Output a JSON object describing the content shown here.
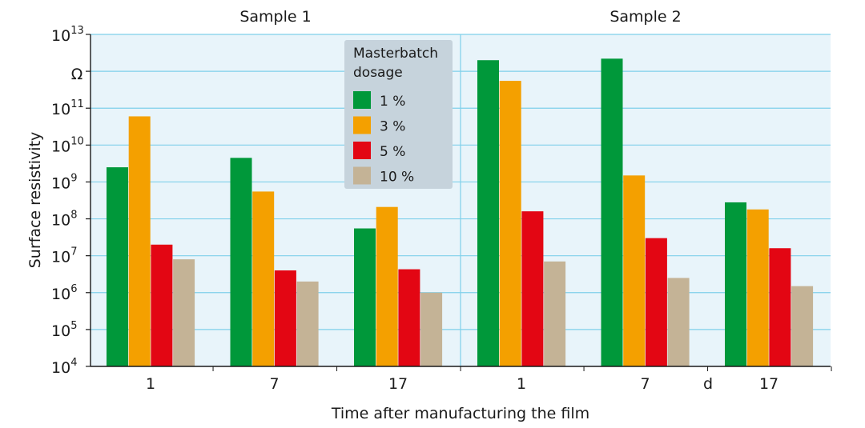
{
  "chart_data": {
    "type": "bar",
    "y_axis": {
      "label": "Surface resistivity",
      "unit_label": "Ω",
      "scale": "log",
      "range": [
        10000,
        10000000000000
      ],
      "tick_base": "10",
      "tick_exponents": [
        "4",
        "5",
        "6",
        "7",
        "8",
        "9",
        "10",
        "11",
        "13"
      ]
    },
    "x_axis": {
      "label": "Time after manufacturing the film",
      "unit_label": "d"
    },
    "grid": true,
    "legend": {
      "title_line1": "Masterbatch",
      "title_line2": "dosage",
      "placement": "top-center",
      "entries": [
        {
          "label": "1 %",
          "color": "#00983a"
        },
        {
          "label": "3 %",
          "color": "#f4a000"
        },
        {
          "label": "5 %",
          "color": "#e30613"
        },
        {
          "label": "10 %",
          "color": "#c4b396"
        }
      ]
    },
    "panels": [
      {
        "title": "Sample 1",
        "groups": [
          {
            "x": "1",
            "values": [
              2500000000.0,
              60000000000.0,
              20000000.0,
              8000000.0
            ]
          },
          {
            "x": "7",
            "values": [
              4500000000.0,
              550000000.0,
              4000000.0,
              2000000.0
            ]
          },
          {
            "x": "17",
            "values": [
              55000000.0,
              210000000.0,
              4300000.0,
              1000000.0
            ]
          }
        ]
      },
      {
        "title": "Sample 2",
        "groups": [
          {
            "x": "1",
            "values": [
              2000000000000.0,
              550000000000.0,
              160000000.0,
              7000000.0
            ]
          },
          {
            "x": "7",
            "values": [
              2200000000000.0,
              1500000000.0,
              30000000.0,
              2500000.0
            ]
          },
          {
            "x": "17",
            "values": [
              280000000.0,
              180000000.0,
              16000000.0,
              1500000.0
            ]
          }
        ]
      }
    ],
    "colors": {
      "plot_background": "#e8f4fa",
      "gridline": "#7fd0ea",
      "divider": "#7fd0ea",
      "legend_background": "#c6d3dc"
    }
  }
}
